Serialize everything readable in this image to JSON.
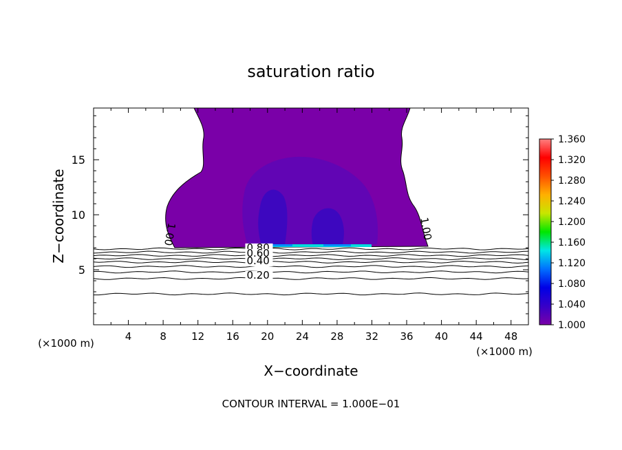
{
  "chart_data": {
    "type": "heatmap",
    "title": "saturation ratio",
    "xlabel": "X−coordinate",
    "ylabel": "Z−coordinate",
    "x_unit_left": "(×1000 m)",
    "x_unit_right": "(×1000 m)",
    "footer": "CONTOUR INTERVAL = 1.000E−01",
    "xlim": [
      0,
      50
    ],
    "ylim": [
      0,
      19.7
    ],
    "xticks": [
      4,
      8,
      12,
      16,
      20,
      24,
      28,
      32,
      36,
      40,
      44,
      48
    ],
    "yticks": [
      5,
      10,
      15
    ],
    "colorbar": {
      "min": 1.0,
      "max": 1.36,
      "ticks": [
        "1.000",
        "1.040",
        "1.080",
        "1.120",
        "1.160",
        "1.200",
        "1.240",
        "1.280",
        "1.320",
        "1.360"
      ],
      "colors": [
        "#7a00a8",
        "#3700c8",
        "#0000e6",
        "#0070ff",
        "#00e6e6",
        "#00e600",
        "#c8e600",
        "#ffb000",
        "#ff5000",
        "#ff0000",
        "#ff8080"
      ]
    },
    "contour_labels": [
      {
        "text": "1.00",
        "x": 8.6,
        "y": 9.3
      },
      {
        "text": "1.00",
        "x": 37.6,
        "y": 9.7
      },
      {
        "text": "0.80",
        "x": 17.6,
        "y": 6.7
      },
      {
        "text": "0.60",
        "x": 17.6,
        "y": 6.2
      },
      {
        "text": "0.40",
        "x": 17.6,
        "y": 5.5
      },
      {
        "text": "0.20",
        "x": 17.6,
        "y": 4.2
      }
    ],
    "contour_levels": [
      {
        "level": 0.9,
        "z": 6.9
      },
      {
        "level": 0.8,
        "z": 6.6
      },
      {
        "level": 0.7,
        "z": 6.3
      },
      {
        "level": 0.6,
        "z": 6.0
      },
      {
        "level": 0.5,
        "z": 5.7
      },
      {
        "level": 0.4,
        "z": 5.3
      },
      {
        "level": 0.3,
        "z": 4.8
      },
      {
        "level": 0.2,
        "z": 4.2
      },
      {
        "level": 0.1,
        "z": 2.8
      }
    ],
    "cloud_region": {
      "base_z": 7.1,
      "x_range": [
        9.0,
        38.5
      ],
      "value": 1.0,
      "max_region": {
        "x_range": [
          18.5,
          32
        ],
        "z": 7.2,
        "value": 1.12
      }
    }
  }
}
